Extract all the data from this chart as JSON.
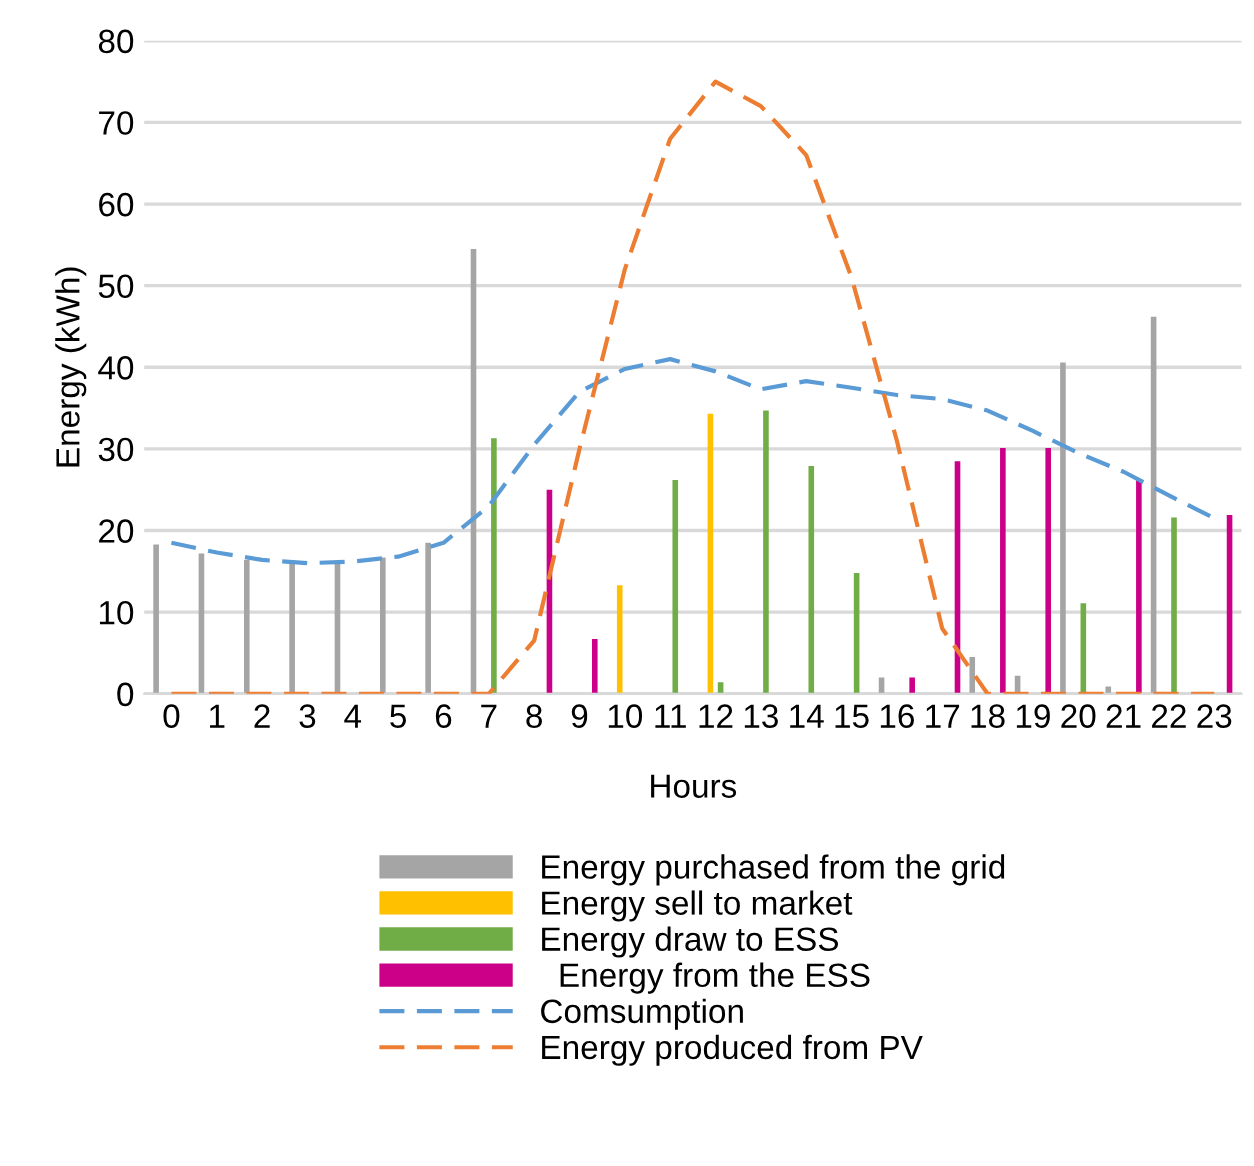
{
  "chart_data": {
    "type": "bar",
    "xlabel": "Hours",
    "ylabel": "Energy (kWh)",
    "categories": [
      "0",
      "1",
      "2",
      "3",
      "4",
      "5",
      "6",
      "7",
      "8",
      "9",
      "10",
      "11",
      "12",
      "13",
      "14",
      "15",
      "16",
      "17",
      "18",
      "19",
      "20",
      "21",
      "22",
      "23"
    ],
    "series": [
      {
        "name": "Energy purchased from the grid",
        "color": "#a5a5a5",
        "values": [
          18.3,
          17.2,
          16.4,
          15.9,
          16.1,
          16.7,
          18.5,
          54.5,
          0,
          0,
          0,
          0,
          0,
          0,
          0,
          0,
          2,
          0,
          4.5,
          2.2,
          40.6,
          0.9,
          46.2,
          0
        ]
      },
      {
        "name": "Energy sell to market",
        "color": "#ffc000",
        "values": [
          0,
          0,
          0,
          0,
          0,
          0,
          0,
          0,
          0,
          0,
          13.3,
          0,
          34.3,
          0,
          0,
          0,
          0,
          0,
          0,
          0,
          0,
          0,
          0,
          0
        ]
      },
      {
        "name": "Energy draw to ESS",
        "color": "#70ad47",
        "values": [
          0,
          0,
          0,
          0,
          0,
          0,
          0,
          31.3,
          0,
          0,
          0,
          26.2,
          1.4,
          34.7,
          27.9,
          14.8,
          0,
          0,
          0,
          0,
          11.1,
          0,
          21.6,
          0
        ]
      },
      {
        "name": "  Energy from the ESS",
        "color": "#cc0088",
        "values": [
          0,
          0,
          0,
          0,
          0,
          0,
          0,
          0,
          25,
          6.7,
          0,
          0,
          0,
          0,
          0,
          0,
          2,
          28.5,
          30.1,
          30.1,
          0,
          26.3,
          0,
          21.9
        ]
      },
      {
        "name": "Comsumption",
        "type": "line",
        "line_style": "dashed",
        "color": "#5b9bd5",
        "values": [
          18.5,
          17.3,
          16.4,
          16,
          16.2,
          16.8,
          18.5,
          23,
          30.5,
          37,
          39.8,
          41,
          39.5,
          37.3,
          38.3,
          37.5,
          36.6,
          36.1,
          34.7,
          32.2,
          29.5,
          27.2,
          24.3,
          21.5
        ]
      },
      {
        "name": "Energy produced from PV",
        "type": "line",
        "line_style": "dashed",
        "color": "#ed7d31",
        "values": [
          0,
          0,
          0,
          0,
          0,
          0,
          0,
          0,
          6.5,
          30,
          52,
          68,
          75,
          72,
          66,
          51,
          31,
          8,
          0,
          0,
          0,
          0,
          0,
          0
        ]
      }
    ],
    "ylim": [
      0,
      80
    ],
    "yticks": [
      0,
      10,
      20,
      30,
      40,
      50,
      60,
      70,
      80
    ],
    "grid": "y",
    "legend": "bottom"
  }
}
